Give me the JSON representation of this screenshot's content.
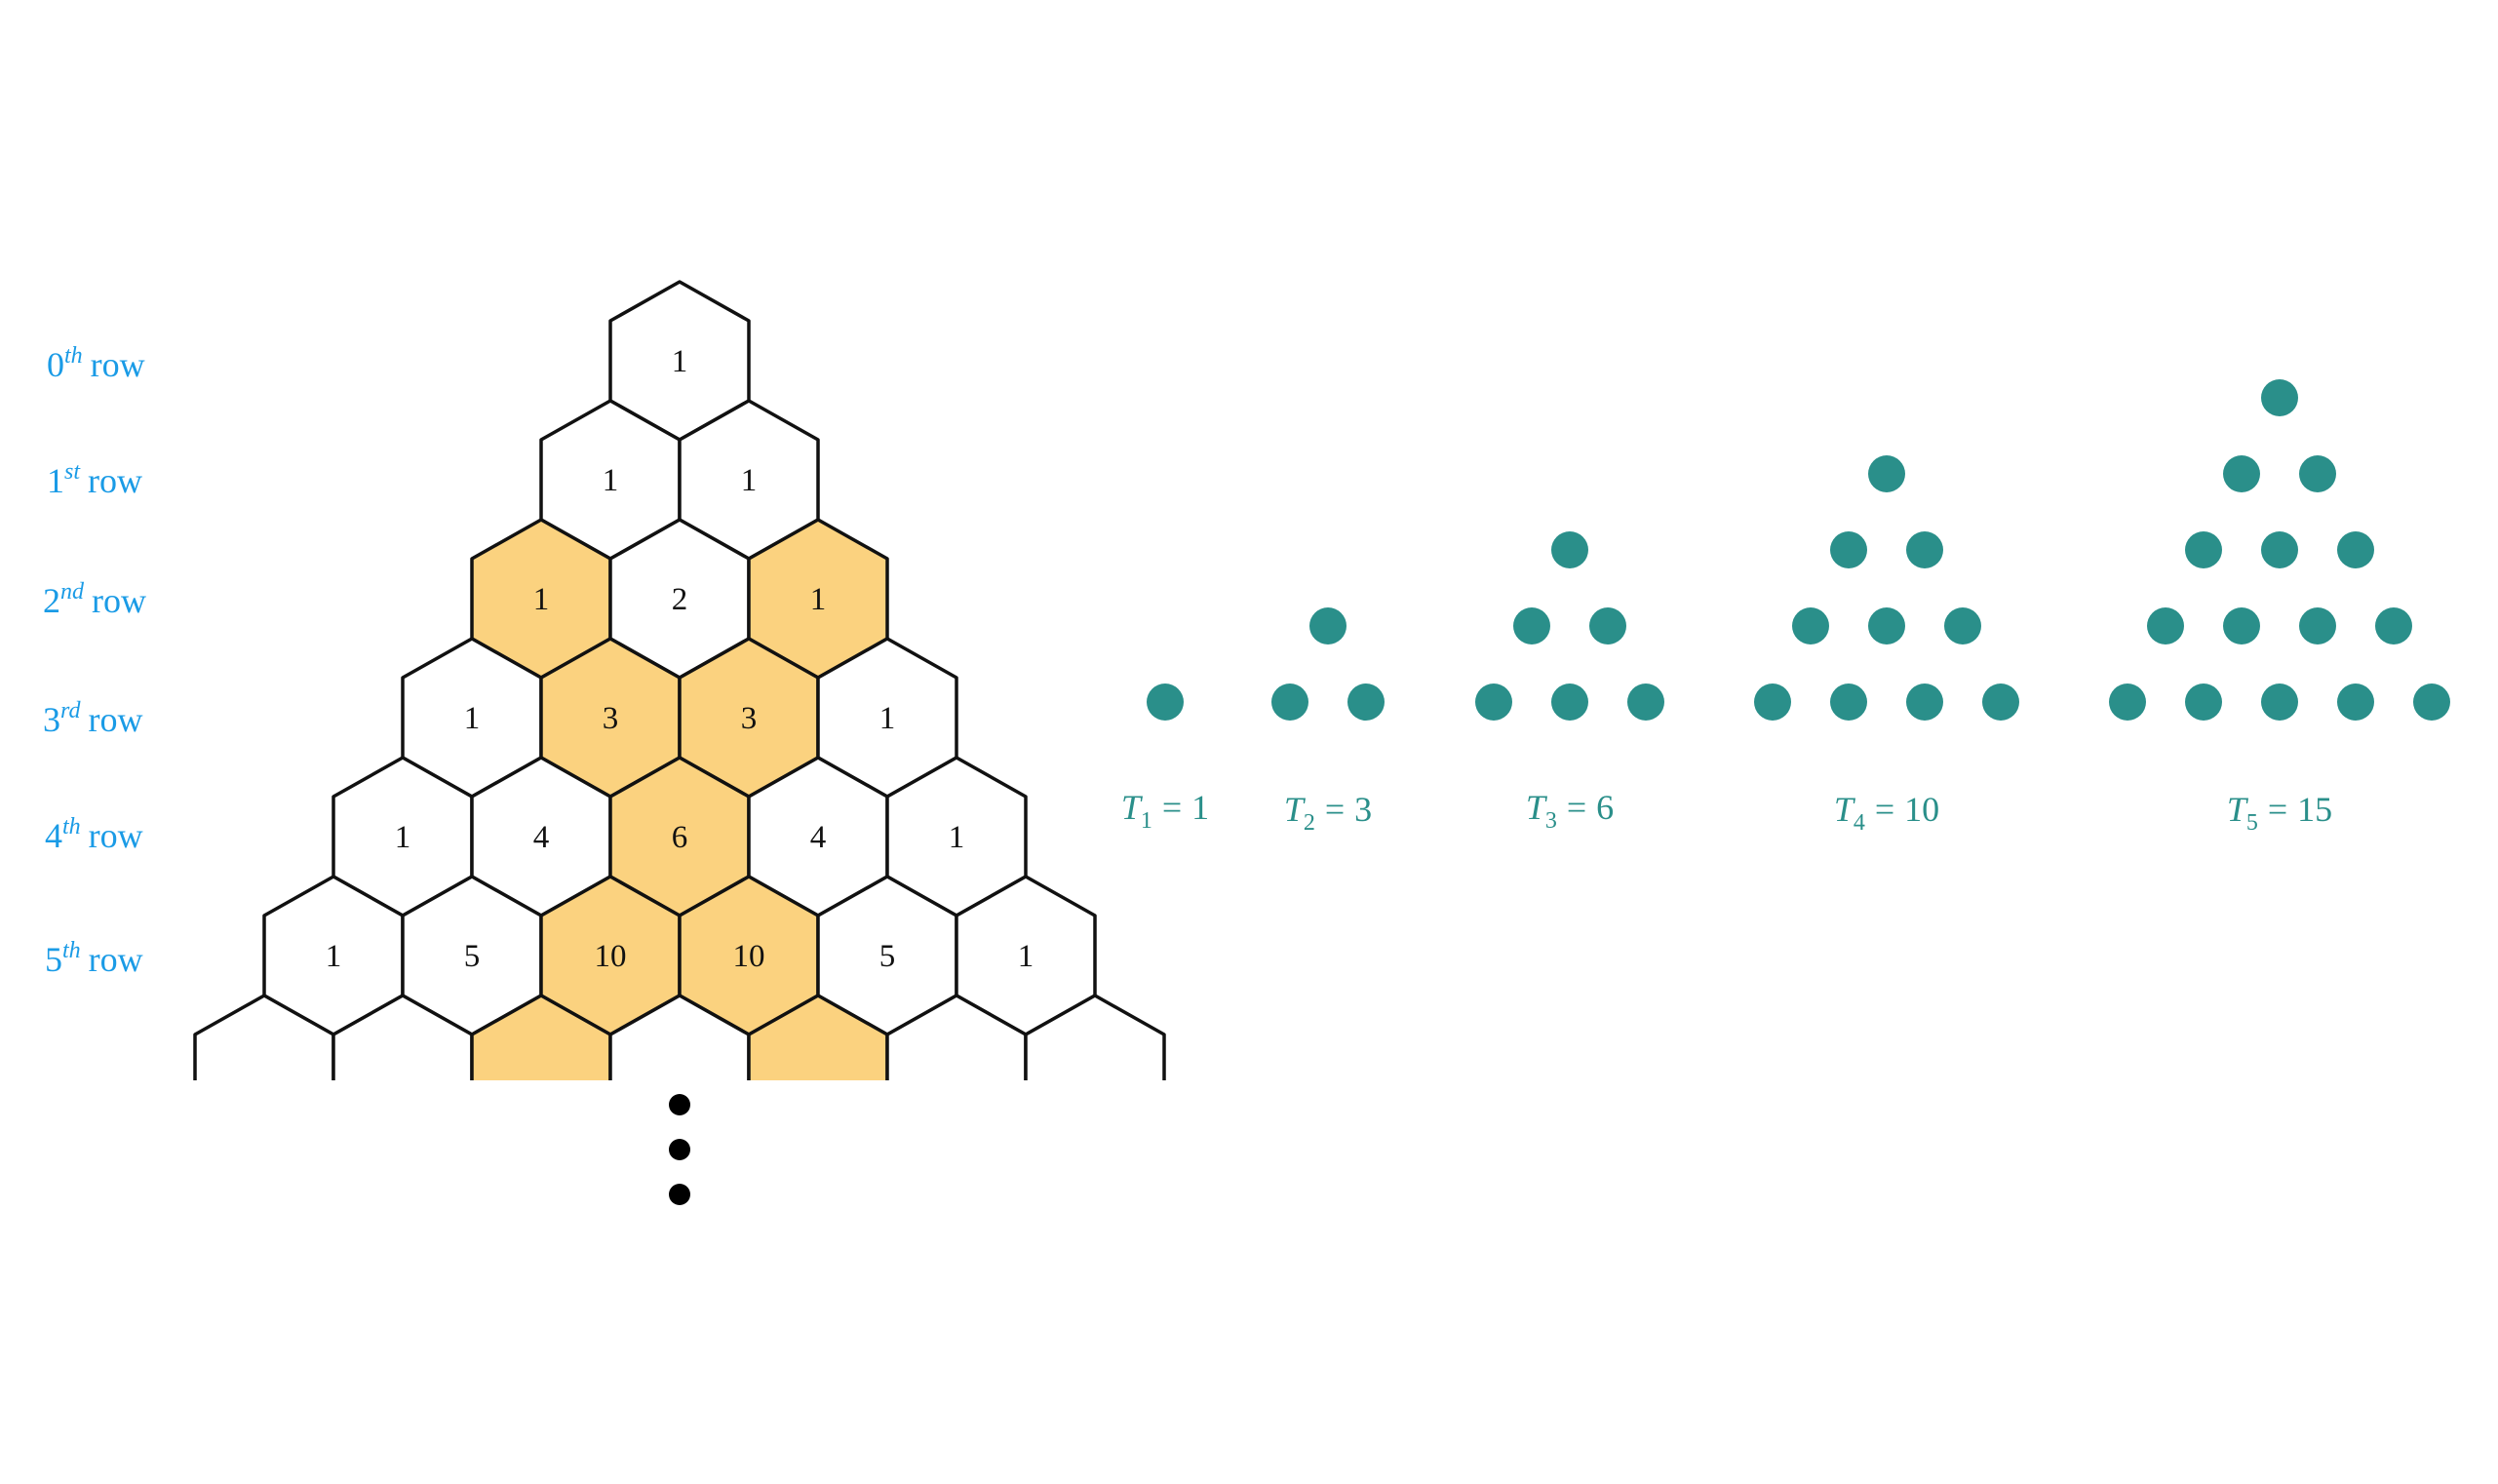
{
  "colors": {
    "row_label": "#1a9be6",
    "highlight_fill": "#fbd27f",
    "hex_stroke": "#111111",
    "dot": "#2a8f8a",
    "caption": "#2a8f8a"
  },
  "row_labels": [
    {
      "num": "0",
      "sup": "th",
      "word": "row"
    },
    {
      "num": "1",
      "sup": "st",
      "word": "row"
    },
    {
      "num": "2",
      "sup": "nd",
      "word": "row"
    },
    {
      "num": "3",
      "sup": "rd",
      "word": "row"
    },
    {
      "num": "4",
      "sup": "th",
      "word": "row"
    },
    {
      "num": "5",
      "sup": "th",
      "word": "row"
    }
  ],
  "pascal_rows": [
    [
      "1"
    ],
    [
      "1",
      "1"
    ],
    [
      "1",
      "2",
      "1"
    ],
    [
      "1",
      "3",
      "3",
      "1"
    ],
    [
      "1",
      "4",
      "6",
      "4",
      "1"
    ],
    [
      "1",
      "5",
      "10",
      "10",
      "5",
      "1"
    ]
  ],
  "highlighted_cells": [
    [
      2,
      0
    ],
    [
      2,
      2
    ],
    [
      3,
      1
    ],
    [
      3,
      2
    ],
    [
      4,
      2
    ],
    [
      5,
      2
    ],
    [
      5,
      3
    ],
    [
      6,
      2
    ],
    [
      6,
      4
    ]
  ],
  "ellipsis_dots": 3,
  "triangular_numbers": [
    {
      "symbol": "T",
      "index": "1",
      "equals": "=",
      "value": "1"
    },
    {
      "symbol": "T",
      "index": "2",
      "equals": "=",
      "value": "3"
    },
    {
      "symbol": "T",
      "index": "3",
      "equals": "=",
      "value": "6"
    },
    {
      "symbol": "T",
      "index": "4",
      "equals": "=",
      "value": "10"
    },
    {
      "symbol": "T",
      "index": "5",
      "equals": "=",
      "value": "15"
    }
  ]
}
